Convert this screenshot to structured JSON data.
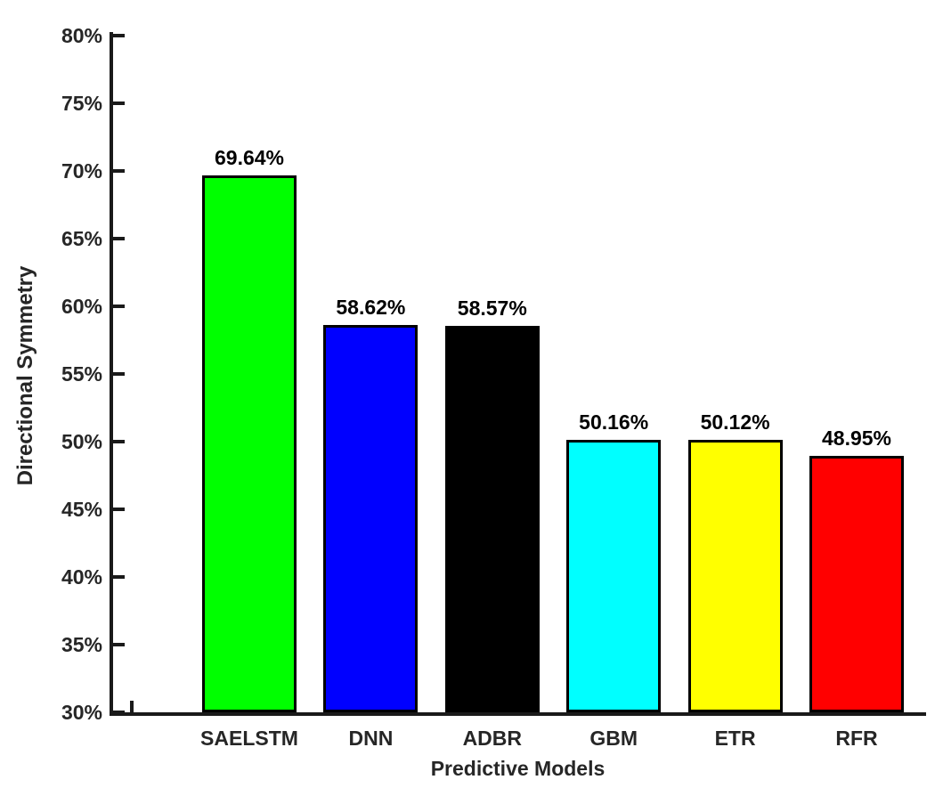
{
  "chart_data": {
    "type": "bar",
    "title": "",
    "xlabel": "Predictive Models",
    "ylabel": "Directional Symmetry",
    "categories": [
      "SAELSTM",
      "DNN",
      "ADBR",
      "GBM",
      "ETR",
      "RFR"
    ],
    "values": [
      69.64,
      58.62,
      58.57,
      50.16,
      50.12,
      48.95
    ],
    "bar_labels": [
      "69.64%",
      "58.62%",
      "58.57%",
      "50.16%",
      "50.12%",
      "48.95%"
    ],
    "bar_colors": [
      "#00ff00",
      "#0000ff",
      "#000000",
      "#00ffff",
      "#ffff00",
      "#ff0000"
    ],
    "bar_edge_color": "#000000",
    "ylim": [
      30,
      80
    ],
    "ytick_step": 5,
    "ytick_labels": [
      "30%",
      "35%",
      "40%",
      "45%",
      "50%",
      "55%",
      "60%",
      "65%",
      "70%",
      "75%",
      "80%"
    ],
    "grid": false,
    "legend": null,
    "box": false,
    "tick_direction": "in",
    "axis_color": "#1a1a1a",
    "text_color": "#262626",
    "background": "#ffffff"
  }
}
